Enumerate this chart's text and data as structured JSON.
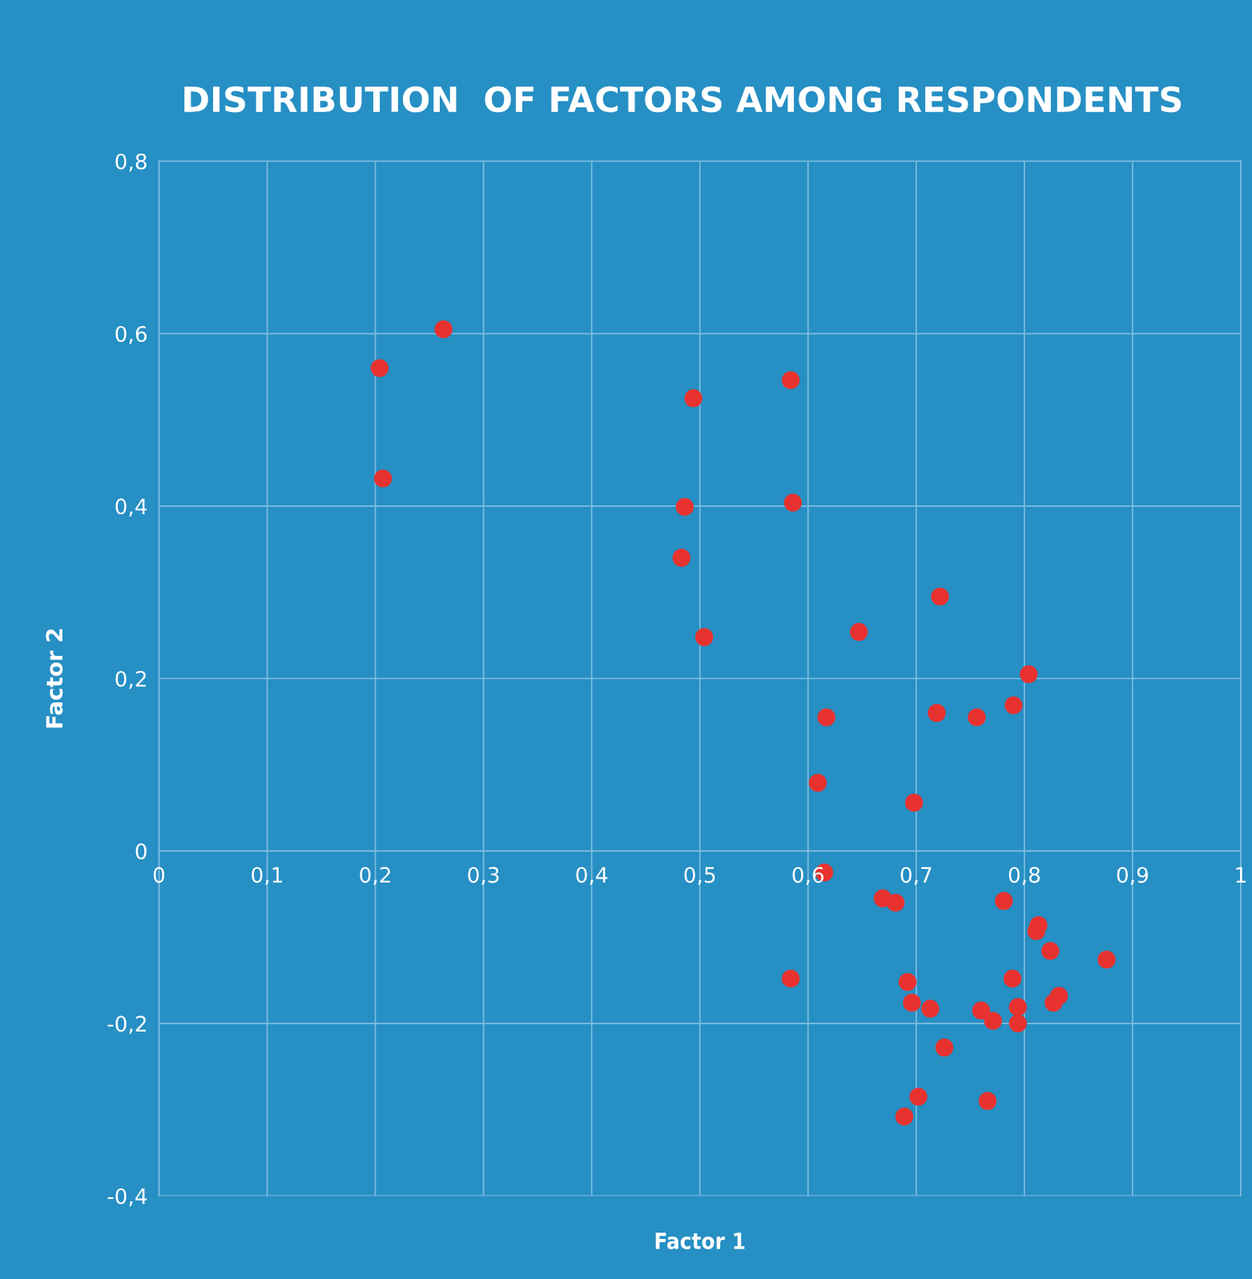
{
  "chart_data": {
    "type": "scatter",
    "title": "DISTRIBUTION  OF FACTORS AMONG RESPONDENTS",
    "xlabel": "Factor 1",
    "ylabel": "Factor 2",
    "xlim": [
      0,
      1
    ],
    "ylim": [
      -0.4,
      0.8
    ],
    "xticks": [
      {
        "value": 0,
        "label": "0"
      },
      {
        "value": 0.1,
        "label": "0,1"
      },
      {
        "value": 0.2,
        "label": "0,2"
      },
      {
        "value": 0.3,
        "label": "0,3"
      },
      {
        "value": 0.4,
        "label": "0,4"
      },
      {
        "value": 0.5,
        "label": "0,5"
      },
      {
        "value": 0.6,
        "label": "0,6"
      },
      {
        "value": 0.7,
        "label": "0,7"
      },
      {
        "value": 0.8,
        "label": "0,8"
      },
      {
        "value": 0.9,
        "label": "0,9"
      },
      {
        "value": 1,
        "label": "1"
      }
    ],
    "yticks": [
      {
        "value": -0.4,
        "label": "-0,4"
      },
      {
        "value": -0.2,
        "label": "-0,2"
      },
      {
        "value": 0,
        "label": "0"
      },
      {
        "value": 0.2,
        "label": "0,2"
      },
      {
        "value": 0.4,
        "label": "0,4"
      },
      {
        "value": 0.6,
        "label": "0,6"
      },
      {
        "value": 0.8,
        "label": "0,8"
      }
    ],
    "grid": true,
    "legend": false,
    "marker": "circle",
    "series": [
      {
        "color": "#e8322f",
        "x": [
          0.204,
          0.263,
          0.207,
          0.584,
          0.494,
          0.586,
          0.486,
          0.483,
          0.504,
          0.722,
          0.647,
          0.804,
          0.79,
          0.719,
          0.756,
          0.617,
          0.609,
          0.698,
          0.615,
          0.669,
          0.681,
          0.781,
          0.813,
          0.811,
          0.824,
          0.876,
          0.584,
          0.692,
          0.789,
          0.696,
          0.713,
          0.794,
          0.832,
          0.827,
          0.76,
          0.771,
          0.794,
          0.726,
          0.702,
          0.689,
          0.766
        ],
        "values": [
          0.56,
          0.605,
          0.432,
          0.546,
          0.525,
          0.404,
          0.399,
          0.34,
          0.248,
          0.295,
          0.254,
          0.205,
          0.169,
          0.16,
          0.155,
          0.155,
          0.079,
          0.056,
          -0.025,
          -0.055,
          -0.06,
          -0.058,
          -0.086,
          -0.093,
          -0.116,
          -0.126,
          -0.148,
          -0.152,
          -0.148,
          -0.176,
          -0.183,
          -0.181,
          -0.168,
          -0.176,
          -0.185,
          -0.197,
          -0.2,
          -0.228,
          -0.285,
          -0.308,
          -0.29
        ]
      }
    ]
  }
}
